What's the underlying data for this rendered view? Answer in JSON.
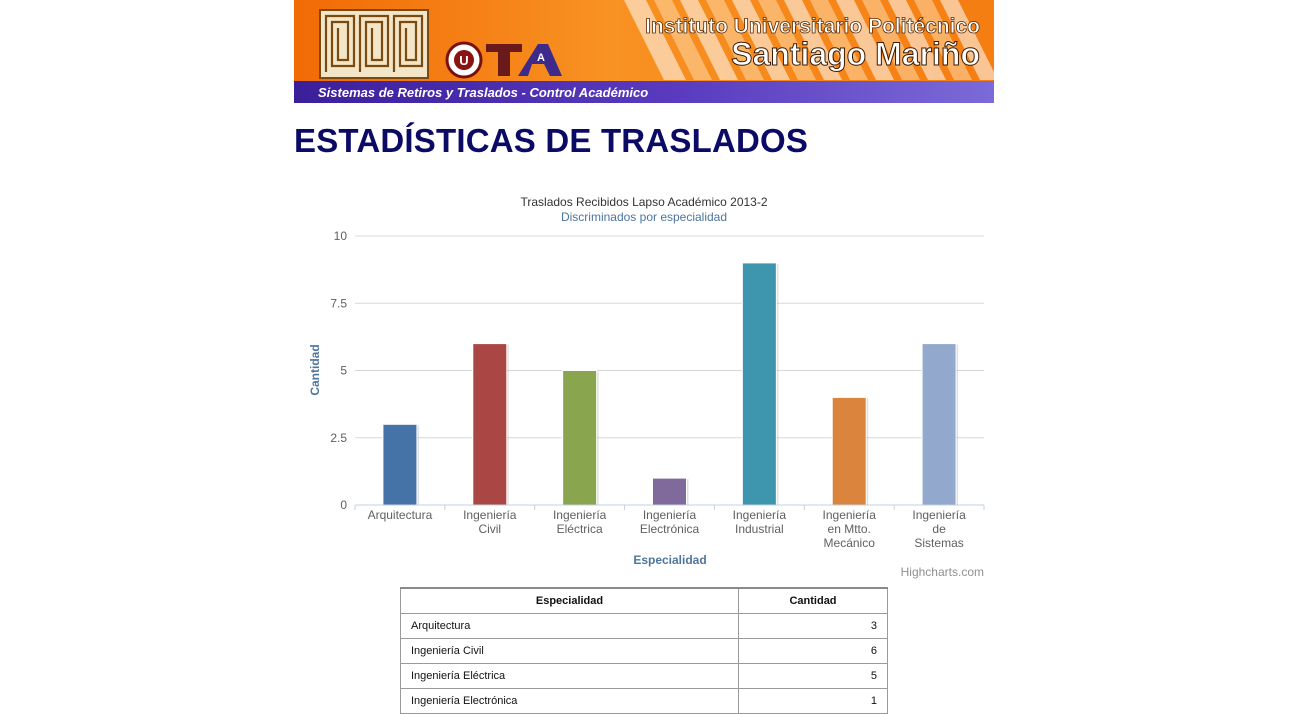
{
  "banner": {
    "title_line1": "Instituto Universitario Politécnico",
    "title_line2": "Santiago Mariño",
    "subtitle": "Sistemas de Retiros y Traslados - Control Académico",
    "emblem_text": "U",
    "logo_text": "A"
  },
  "page": {
    "heading": "ESTADÍSTICAS DE TRASLADOS"
  },
  "chart_data": {
    "type": "bar",
    "title": "Traslados Recibidos Lapso Académico 2013-2",
    "subtitle": "Discriminados por especialidad",
    "xlabel": "Especialidad",
    "ylabel": "Cantidad",
    "credits": "Highcharts.com",
    "ylim": [
      0,
      10
    ],
    "yticks": [
      "0",
      "2.5",
      "5",
      "7.5",
      "10"
    ],
    "grid": true,
    "legend": "none",
    "categories": [
      [
        "Arquitectura"
      ],
      [
        "Ingeniería",
        "Civil"
      ],
      [
        "Ingeniería",
        "Eléctrica"
      ],
      [
        "Ingeniería",
        "Electrónica"
      ],
      [
        "Ingeniería",
        "Industrial"
      ],
      [
        "Ingeniería",
        "en Mtto.",
        "Mecánico"
      ],
      [
        "Ingeniería",
        "de",
        "Sistemas"
      ]
    ],
    "values": [
      3,
      6,
      5,
      1,
      9,
      4,
      6
    ],
    "colors": [
      "#4572a7",
      "#aa4643",
      "#89a54e",
      "#80699b",
      "#3d96ae",
      "#db843d",
      "#92a8cd"
    ]
  },
  "table": {
    "headers": [
      "Especialidad",
      "Cantidad"
    ],
    "rows": [
      [
        "Arquitectura",
        "3"
      ],
      [
        "Ingeniería Civil",
        "6"
      ],
      [
        "Ingeniería Eléctrica",
        "5"
      ],
      [
        "Ingeniería Electrónica",
        "1"
      ]
    ]
  },
  "colors": {
    "heading": "#0b0b66",
    "banner_orange": "#f47a10",
    "banner_purple": "#5a36b0",
    "axis_label": "#4d759e"
  }
}
